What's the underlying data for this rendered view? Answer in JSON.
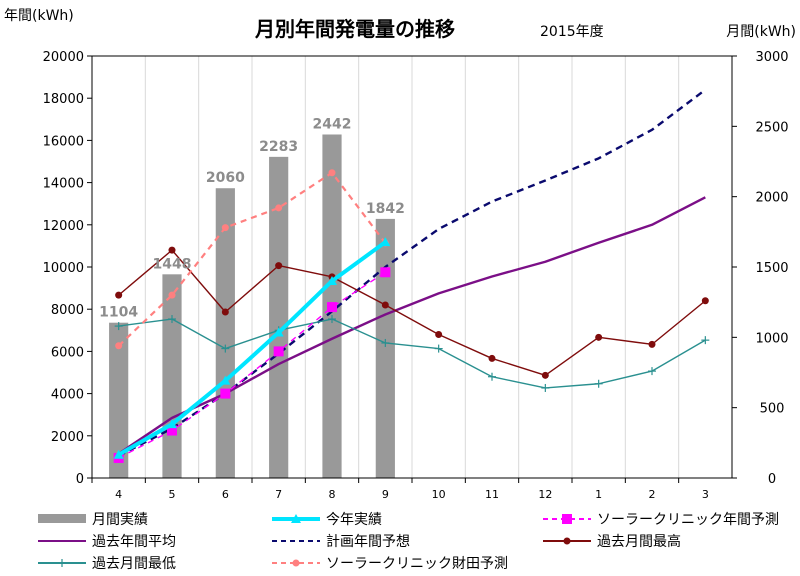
{
  "header": {
    "title": "月別年間発電量の推移",
    "year_label": "2015年度",
    "left_unit": "年間(kWh)",
    "right_unit": "月間(kWh)"
  },
  "chart_data": {
    "type": "bar+line",
    "title": "月別年間発電量の推移",
    "subtitle": "2015年度",
    "categories": [
      "4",
      "5",
      "6",
      "7",
      "8",
      "9",
      "10",
      "11",
      "12",
      "1",
      "2",
      "3"
    ],
    "left_axis": {
      "label": "年間(kWh)",
      "ylim": [
        0,
        20000
      ],
      "ticks": [
        0,
        2000,
        4000,
        6000,
        8000,
        10000,
        12000,
        14000,
        16000,
        18000,
        20000
      ]
    },
    "right_axis": {
      "label": "月間(kWh)",
      "ylim": [
        0,
        3000
      ],
      "ticks": [
        0,
        500,
        1000,
        1500,
        2000,
        2500,
        3000
      ]
    },
    "grid": "vertical",
    "legend_position": "bottom",
    "series": [
      {
        "name": "月間実績",
        "type": "bar",
        "axis": "right",
        "color": "#999999",
        "values": [
          1104,
          1448,
          2060,
          2283,
          2442,
          1842,
          null,
          null,
          null,
          null,
          null,
          null
        ],
        "labels": [
          "1104",
          "1448",
          "2060",
          "2283",
          "2442",
          "1842"
        ]
      },
      {
        "name": "今年実績",
        "type": "line",
        "axis": "left",
        "color": "#00e5ff",
        "marker": "triangle",
        "values": [
          1104,
          2552,
          4612,
          6895,
          9337,
          11179,
          null,
          null,
          null,
          null,
          null,
          null
        ]
      },
      {
        "name": "ソーラークリニック年間予測",
        "type": "line",
        "axis": "left",
        "color": "#ff00ff",
        "dash": true,
        "marker": "square",
        "values": [
          950,
          2250,
          4000,
          6000,
          8100,
          9750,
          null,
          null,
          null,
          null,
          null,
          null
        ]
      },
      {
        "name": "過去年間平均",
        "type": "line",
        "axis": "left",
        "color": "#7b0f87",
        "values": [
          1150,
          2850,
          4000,
          5400,
          6600,
          7750,
          8750,
          9550,
          10250,
          11150,
          12000,
          13300
        ]
      },
      {
        "name": "計画年間予想",
        "type": "line",
        "axis": "left",
        "color": "#0a0a6e",
        "dash": true,
        "values": [
          1050,
          2350,
          4000,
          5900,
          7900,
          10000,
          11800,
          13100,
          14100,
          15150,
          16500,
          18400
        ]
      },
      {
        "name": "過去月間最高",
        "type": "line",
        "axis": "right",
        "color": "#7f0c0c",
        "marker": "circle",
        "values": [
          1300,
          1620,
          1180,
          1510,
          1430,
          1230,
          1020,
          850,
          730,
          1000,
          950,
          1260
        ]
      },
      {
        "name": "過去月間最低",
        "type": "line",
        "axis": "right",
        "color": "#2a9090",
        "marker": "plus",
        "values": [
          1080,
          1130,
          920,
          1050,
          1130,
          960,
          920,
          720,
          640,
          670,
          760,
          980
        ]
      },
      {
        "name": "ソーラークリニック財田予測",
        "type": "line",
        "axis": "right",
        "color": "#ff8080",
        "dash": true,
        "marker": "circle",
        "values": [
          940,
          1300,
          1780,
          1920,
          2170,
          1670,
          null,
          null,
          null,
          null,
          null,
          null
        ]
      }
    ]
  }
}
